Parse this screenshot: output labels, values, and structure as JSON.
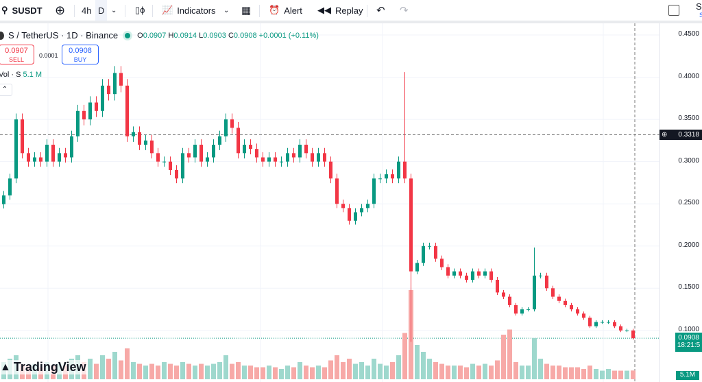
{
  "toolbar": {
    "symbol": "SUSDT",
    "intervals": [
      "4h",
      "D"
    ],
    "indicators": "Indicators",
    "alert": "Alert",
    "replay": "Replay",
    "save_top": "Sa",
    "save_sub": "S"
  },
  "legend": {
    "title": "S / TetherUS · 1D · Binance",
    "o_label": "O",
    "o": "0.0907",
    "h_label": "H",
    "h": "0.0914",
    "l_label": "L",
    "l": "0.0903",
    "c_label": "C",
    "c": "0.0908",
    "change": "+0.0001 (+0.11%)"
  },
  "trade": {
    "sell_price": "0.0907",
    "sell_label": "SELL",
    "spread": "0.0001",
    "buy_price": "0.0908",
    "buy_label": "BUY"
  },
  "volume_legend": {
    "label": "Vol · S",
    "value": "5.1 M"
  },
  "price_axis": {
    "ticks": [
      "0.4500",
      "0.4000",
      "0.3500",
      "0.3000",
      "0.2500",
      "0.2000",
      "0.1500",
      "0.1000"
    ],
    "crosshair_price": "0.3318",
    "last_price": "0.0908",
    "countdown": "18:21:5",
    "volume_tag": "5.1M"
  },
  "branding": "TradingView",
  "colors": {
    "up": "#089981",
    "down": "#f23645",
    "up_vol": "#9ed8cd",
    "down_vol": "#f7a9a7"
  },
  "chart_data": {
    "type": "candlestick",
    "ylim": [
      0.08,
      0.46
    ],
    "yticks": [
      0.45,
      0.4,
      0.35,
      0.3,
      0.25,
      0.2,
      0.15,
      0.1
    ],
    "crosshair": 0.3318,
    "last": 0.0908,
    "close": [
      0.26,
      0.28,
      0.35,
      0.31,
      0.3,
      0.305,
      0.3,
      0.32,
      0.3,
      0.31,
      0.305,
      0.33,
      0.36,
      0.35,
      0.37,
      0.36,
      0.39,
      0.38,
      0.405,
      0.39,
      0.33,
      0.335,
      0.32,
      0.325,
      0.31,
      0.3,
      0.3,
      0.29,
      0.28,
      0.31,
      0.305,
      0.32,
      0.3,
      0.305,
      0.32,
      0.33,
      0.35,
      0.34,
      0.31,
      0.32,
      0.315,
      0.305,
      0.3,
      0.305,
      0.3,
      0.3,
      0.31,
      0.305,
      0.32,
      0.31,
      0.3,
      0.31,
      0.3,
      0.28,
      0.25,
      0.245,
      0.23,
      0.24,
      0.245,
      0.25,
      0.28,
      0.28,
      0.285,
      0.28,
      0.3,
      0.28,
      0.17,
      0.18,
      0.2,
      0.2,
      0.185,
      0.175,
      0.165,
      0.17,
      0.165,
      0.16,
      0.17,
      0.165,
      0.17,
      0.16,
      0.145,
      0.14,
      0.13,
      0.12,
      0.125,
      0.125,
      0.165,
      0.165,
      0.15,
      0.14,
      0.135,
      0.13,
      0.125,
      0.12,
      0.115,
      0.105,
      0.11,
      0.11,
      0.11,
      0.105,
      0.1,
      0.1,
      0.0908
    ],
    "volume_m": [
      10,
      12,
      14,
      9,
      8,
      9,
      7,
      10,
      8,
      9,
      8,
      12,
      14,
      10,
      12,
      9,
      14,
      12,
      16,
      11,
      18,
      10,
      9,
      8,
      9,
      8,
      10,
      9,
      8,
      10,
      9,
      8,
      9,
      8,
      9,
      10,
      14,
      9,
      10,
      8,
      8,
      7,
      7,
      8,
      7,
      6,
      8,
      7,
      10,
      8,
      7,
      8,
      7,
      11,
      14,
      10,
      12,
      9,
      10,
      8,
      12,
      9,
      8,
      10,
      14,
      27,
      52,
      20,
      16,
      12,
      10,
      9,
      8,
      8,
      8,
      7,
      9,
      8,
      9,
      8,
      11,
      26,
      29,
      10,
      8,
      8,
      24,
      12,
      9,
      8,
      8,
      7,
      7,
      7,
      6,
      8,
      6,
      5,
      6,
      5,
      5,
      5,
      5.1
    ]
  }
}
